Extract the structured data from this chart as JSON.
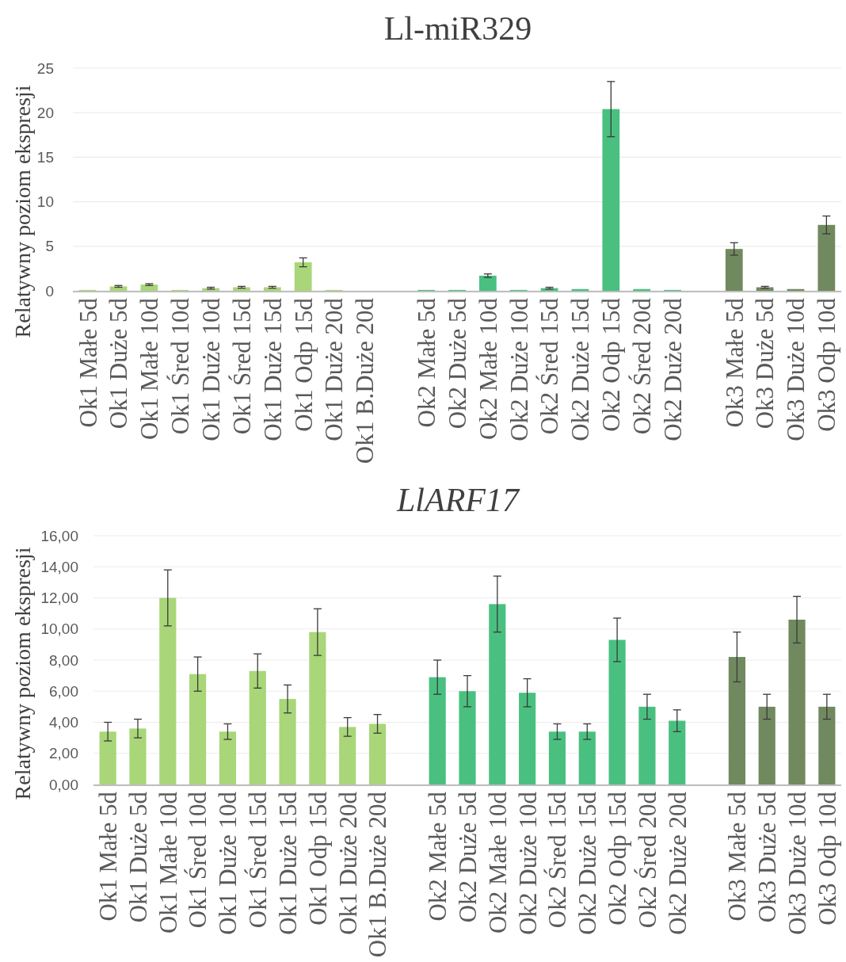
{
  "chart_data": [
    {
      "type": "bar",
      "title": "Ll-miR329",
      "ylabel": "Relatywny poziom ekspresji",
      "categories": [
        "Ok1 Małe 5d",
        "Ok1 Duże 5d",
        "Ok1 Małe 10d",
        "Ok1 Śred 10d",
        "Ok1 Duże 10d",
        "Ok1 Śred 15d",
        "Ok1 Duże 15d",
        "Ok1 Odp 15d",
        "Ok1 Duże 20d",
        "Ok1 B.Duże 20d",
        null,
        "Ok2 Małe 5d",
        "Ok2 Duże 5d",
        "Ok2 Małe 10d",
        "Ok2 Duże 10d",
        "Ok2 Śred 15d",
        "Ok2 Duże 15d",
        "Ok2 Odp 15d",
        "Ok2 Śred 20d",
        "Ok2 Duże 20d",
        null,
        "Ok3 Małe 5d",
        "Ok3 Duże 5d",
        "Ok3 Duże 10d",
        "Ok3 Odp 10d"
      ],
      "values": [
        0.1,
        0.5,
        0.7,
        0.1,
        0.3,
        0.4,
        0.4,
        3.2,
        0.1,
        null,
        null,
        0.1,
        0.1,
        1.7,
        0.1,
        0.3,
        0.2,
        20.4,
        0.2,
        0.1,
        null,
        4.7,
        0.4,
        0.2,
        7.4
      ],
      "errors": [
        null,
        0.1,
        0.1,
        null,
        0.1,
        0.1,
        0.1,
        0.5,
        null,
        null,
        null,
        null,
        null,
        0.2,
        null,
        0.1,
        null,
        3.1,
        null,
        null,
        null,
        0.7,
        0.1,
        null,
        1.0
      ],
      "colors": [
        "#a9d678",
        "#a9d678",
        "#a9d678",
        "#a9d678",
        "#a9d678",
        "#a9d678",
        "#a9d678",
        "#a9d678",
        "#a9d678",
        null,
        null,
        "#4ac080",
        "#4ac080",
        "#4ac080",
        "#4ac080",
        "#4ac080",
        "#4ac080",
        "#4ac080",
        "#4ac080",
        "#4ac080",
        null,
        "#71895e",
        "#71895e",
        "#71895e",
        "#71895e"
      ],
      "ylim": [
        0,
        25
      ],
      "yticks": [
        0,
        5,
        10,
        15,
        20,
        25
      ],
      "grid": "y"
    },
    {
      "type": "bar",
      "title": "LlARF17",
      "ylabel": "Relatywny poziom ekspresji",
      "categories": [
        "Ok1 Małe 5d",
        "Ok1 Duże 5d",
        "Ok1 Małe 10d",
        "Ok1 Śred 10d",
        "Ok1 Duże 10d",
        "Ok1 Śred 15d",
        "Ok1 Duże 15d",
        "Ok1 Odp 15d",
        "Ok1 Duże 20d",
        "Ok1 B.Duże 20d",
        null,
        "Ok2 Małe 5d",
        "Ok2 Duże 5d",
        "Ok2 Małe 10d",
        "Ok2 Duże 10d",
        "Ok2 Śred 15d",
        "Ok2 Duże 15d",
        "Ok2 Odp 15d",
        "Ok2 Śred 20d",
        "Ok2 Duże 20d",
        null,
        "Ok3 Małe 5d",
        "Ok3 Duże 5d",
        "Ok3 Duże 10d",
        "Ok3 Odp 10d"
      ],
      "values": [
        3.4,
        3.6,
        12.0,
        7.1,
        3.4,
        7.3,
        5.5,
        9.8,
        3.7,
        3.9,
        null,
        6.9,
        6.0,
        11.6,
        5.9,
        3.4,
        3.4,
        9.3,
        5.0,
        4.1,
        null,
        8.2,
        5.0,
        10.6,
        5.0
      ],
      "errors": [
        0.6,
        0.6,
        1.8,
        1.1,
        0.5,
        1.1,
        0.9,
        1.5,
        0.6,
        0.6,
        null,
        1.1,
        1.0,
        1.8,
        0.9,
        0.5,
        0.5,
        1.4,
        0.8,
        0.7,
        null,
        1.6,
        0.8,
        1.5,
        0.8
      ],
      "colors": [
        "#a9d678",
        "#a9d678",
        "#a9d678",
        "#a9d678",
        "#a9d678",
        "#a9d678",
        "#a9d678",
        "#a9d678",
        "#a9d678",
        "#a9d678",
        null,
        "#4ac080",
        "#4ac080",
        "#4ac080",
        "#4ac080",
        "#4ac080",
        "#4ac080",
        "#4ac080",
        "#4ac080",
        "#4ac080",
        null,
        "#71895e",
        "#71895e",
        "#71895e",
        "#71895e"
      ],
      "ylim": [
        0,
        16
      ],
      "yticks": [
        {
          "value": 0,
          "label": "0,00"
        },
        {
          "value": 2,
          "label": "2,00"
        },
        {
          "value": 4,
          "label": "4,00"
        },
        {
          "value": 6,
          "label": "6,00"
        },
        {
          "value": 8,
          "label": "8,00"
        },
        {
          "value": 10,
          "label": "10,00"
        },
        {
          "value": 12,
          "label": "12,00"
        },
        {
          "value": 14,
          "label": "14,00"
        },
        {
          "value": 16,
          "label": "16,00"
        }
      ],
      "grid": "y"
    }
  ]
}
